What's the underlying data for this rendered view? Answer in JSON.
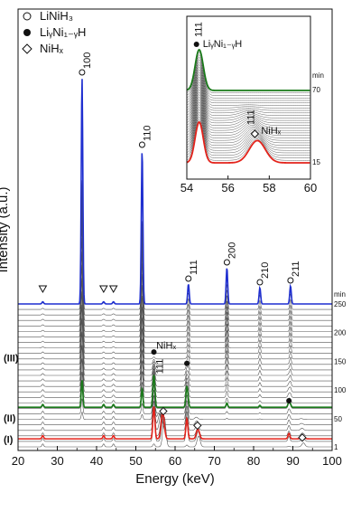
{
  "chart_data": {
    "type": "line",
    "xlabel": "Energy (keV)",
    "ylabel": "Intensity (a.u.)",
    "xlim": [
      20,
      100
    ],
    "x_ticks": [
      20,
      30,
      40,
      50,
      60,
      70,
      80,
      90,
      100
    ],
    "x_tick_labels": [
      "20",
      "30",
      "40",
      "50",
      "60",
      "70",
      "80",
      "90",
      "100"
    ],
    "time_unit": "min",
    "time_ticks": [
      1,
      50,
      100,
      150,
      200,
      250
    ],
    "time_tick_labels": [
      "1",
      "50",
      "100",
      "150",
      "200",
      "250"
    ],
    "num_stack_traces": 27,
    "highlight_times": [
      15,
      70,
      250
    ],
    "highlight_colors": {
      "15": "#e3231b",
      "70": "#1a7a1a",
      "250": "#1f2fd0"
    },
    "regions": [
      "(I)",
      "(II)",
      "(III)"
    ],
    "legend": [
      {
        "symbol": "open-circle-icon",
        "label": "LiNiH₃"
      },
      {
        "symbol": "filled-circle-icon",
        "label": "LiᵧNi₁₋ᵧH"
      },
      {
        "symbol": "open-diamond-icon",
        "label": "NiHₓ"
      }
    ],
    "peaks_LiNiH3": [
      {
        "energy": 36.3,
        "hkl": "100",
        "height": 250
      },
      {
        "energy": 51.6,
        "hkl": "110",
        "height": 170
      },
      {
        "energy": 63.4,
        "hkl": "111",
        "height": 22
      },
      {
        "energy": 73.2,
        "hkl": "200",
        "height": 40
      },
      {
        "energy": 81.6,
        "hkl": "210",
        "height": 18
      },
      {
        "energy": 89.4,
        "hkl": "211",
        "height": 20
      }
    ],
    "triangle_markers": [
      26.3,
      41.8,
      44.3
    ],
    "peaks_LiyNi1yH": [
      {
        "energy": 54.6,
        "hkl": "111"
      },
      {
        "energy": 63.0,
        "hkl": ""
      },
      {
        "energy": 89.0,
        "hkl": ""
      }
    ],
    "peaks_NiHx": [
      {
        "energy": 57.3,
        "hkl": "111"
      },
      {
        "energy": 66.0,
        "hkl": ""
      },
      {
        "energy": 92.7,
        "hkl": ""
      }
    ],
    "inset": {
      "xlim": [
        54,
        60
      ],
      "x_ticks": [
        54,
        56,
        58,
        60
      ],
      "x_tick_labels": [
        "54",
        "56",
        "58",
        "60"
      ],
      "time_unit": "min",
      "time_labels": [
        "70",
        "15"
      ],
      "peak_labels": [
        "111",
        "111"
      ],
      "phase_labels": [
        "LiᵧNi₁₋ᵧH",
        "NiHₓ"
      ]
    }
  },
  "annotations": {
    "main_NiHx": "NiHₓ",
    "main_111": "111"
  }
}
